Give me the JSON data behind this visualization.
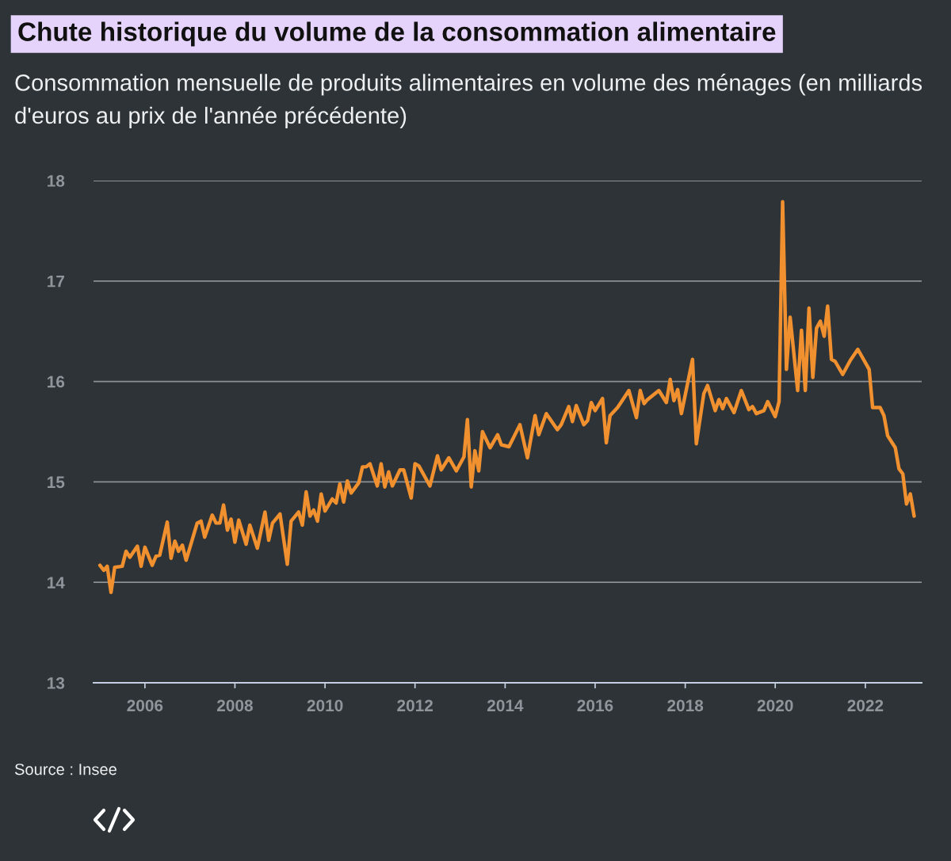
{
  "chart_data": {
    "type": "line",
    "title": "Chute historique du volume de la consommation alimentaire",
    "subtitle": "Consommation mensuelle de produits alimentaires en volume des ménages (en milliards d'euros au prix de l'année précédente)",
    "annotations": [
      "Source : Insee"
    ],
    "x": [
      "2005-01",
      "2005-02",
      "2005-03",
      "2005-04",
      "2005-05",
      "2005-07",
      "2005-08",
      "2005-09",
      "2005-11",
      "2005-12",
      "2006-01",
      "2006-03",
      "2006-04",
      "2006-05",
      "2006-07",
      "2006-08",
      "2006-09",
      "2006-10",
      "2006-11",
      "2006-12",
      "2007-03",
      "2007-04",
      "2007-05",
      "2007-07",
      "2007-08",
      "2007-09",
      "2007-10",
      "2007-11",
      "2007-12",
      "2008-01",
      "2008-02",
      "2008-04",
      "2008-05",
      "2008-07",
      "2008-09",
      "2008-10",
      "2008-11",
      "2009-01",
      "2009-03",
      "2009-04",
      "2009-06",
      "2009-07",
      "2009-08",
      "2009-09",
      "2009-10",
      "2009-11",
      "2009-12",
      "2010-01",
      "2010-03",
      "2010-04",
      "2010-05",
      "2010-06",
      "2010-07",
      "2010-08",
      "2010-10",
      "2010-11",
      "2010-12",
      "2011-01",
      "2011-03",
      "2011-04",
      "2011-05",
      "2011-06",
      "2011-07",
      "2011-09",
      "2011-10",
      "2011-12",
      "2012-01",
      "2012-02",
      "2012-05",
      "2012-07",
      "2012-08",
      "2012-10",
      "2012-12",
      "2013-02",
      "2013-03",
      "2013-04",
      "2013-05",
      "2013-06",
      "2013-07",
      "2013-09",
      "2013-11",
      "2013-12",
      "2014-02",
      "2014-05",
      "2014-07",
      "2014-09",
      "2014-10",
      "2014-12",
      "2015-03",
      "2015-04",
      "2015-06",
      "2015-07",
      "2015-08",
      "2015-10",
      "2015-11",
      "2015-12",
      "2016-01",
      "2016-03",
      "2016-04",
      "2016-05",
      "2016-07",
      "2016-10",
      "2016-12",
      "2017-01",
      "2017-02",
      "2017-03",
      "2017-06",
      "2017-08",
      "2017-09",
      "2017-10",
      "2017-11",
      "2017-12",
      "2018-03",
      "2018-04",
      "2018-06",
      "2018-07",
      "2018-09",
      "2018-10",
      "2018-11",
      "2018-12",
      "2019-02",
      "2019-04",
      "2019-06",
      "2019-07",
      "2019-08",
      "2019-10",
      "2019-11",
      "2020-01",
      "2020-02",
      "2020-03",
      "2020-04",
      "2020-05",
      "2020-07",
      "2020-08",
      "2020-09",
      "2020-10",
      "2020-11",
      "2020-12",
      "2021-01",
      "2021-02",
      "2021-03",
      "2021-04",
      "2021-05",
      "2021-07",
      "2021-09",
      "2021-11",
      "2022-02",
      "2022-03",
      "2022-05",
      "2022-06",
      "2022-07",
      "2022-09",
      "2022-10",
      "2022-11",
      "2022-12",
      "2023-01",
      "2023-02"
    ],
    "series": [
      {
        "color": "#f0902f",
        "values": [
          14.17,
          14.12,
          14.16,
          13.9,
          14.15,
          14.16,
          14.31,
          14.25,
          14.36,
          14.16,
          14.35,
          14.17,
          14.26,
          14.27,
          14.6,
          14.24,
          14.41,
          14.31,
          14.37,
          14.22,
          14.59,
          14.61,
          14.45,
          14.67,
          14.59,
          14.59,
          14.77,
          14.52,
          14.63,
          14.4,
          14.62,
          14.38,
          14.57,
          14.34,
          14.7,
          14.42,
          14.59,
          14.68,
          14.18,
          14.61,
          14.7,
          14.57,
          14.9,
          14.66,
          14.72,
          14.61,
          14.88,
          14.71,
          14.83,
          14.79,
          14.98,
          14.8,
          15.01,
          14.89,
          14.99,
          15.15,
          15.15,
          15.18,
          14.96,
          15.18,
          14.95,
          15.1,
          14.96,
          15.12,
          15.12,
          14.84,
          15.18,
          15.16,
          14.96,
          15.26,
          15.12,
          15.24,
          15.11,
          15.25,
          15.62,
          14.95,
          15.31,
          15.11,
          15.5,
          15.34,
          15.47,
          15.37,
          15.35,
          15.57,
          15.24,
          15.66,
          15.47,
          15.68,
          15.52,
          15.57,
          15.75,
          15.6,
          15.76,
          15.57,
          15.61,
          15.79,
          15.71,
          15.83,
          15.39,
          15.66,
          15.74,
          15.91,
          15.64,
          15.91,
          15.78,
          15.82,
          15.91,
          15.79,
          16.02,
          15.81,
          15.92,
          15.68,
          16.22,
          15.38,
          15.88,
          15.96,
          15.71,
          15.82,
          15.73,
          15.83,
          15.69,
          15.91,
          15.72,
          15.75,
          15.68,
          15.71,
          15.8,
          15.65,
          15.8,
          17.79,
          16.12,
          16.64,
          15.91,
          16.51,
          15.91,
          16.73,
          16.04,
          16.53,
          16.6,
          16.45,
          16.75,
          16.22,
          16.2,
          16.07,
          16.21,
          16.32,
          16.12,
          15.74,
          15.74,
          15.66,
          15.46,
          15.34,
          15.13,
          15.08,
          14.78,
          14.88,
          14.66
        ]
      }
    ],
    "xlim": [
      "2004-11-10",
      "2023-04-03"
    ],
    "xticks": [
      "2006",
      "2008",
      "2010",
      "2012",
      "2014",
      "2016",
      "2018",
      "2020",
      "2022"
    ],
    "ylim": [
      13,
      18
    ],
    "yticks": [
      13,
      14,
      15,
      16,
      17,
      18
    ],
    "grid": "y",
    "line_style": "solid"
  }
}
